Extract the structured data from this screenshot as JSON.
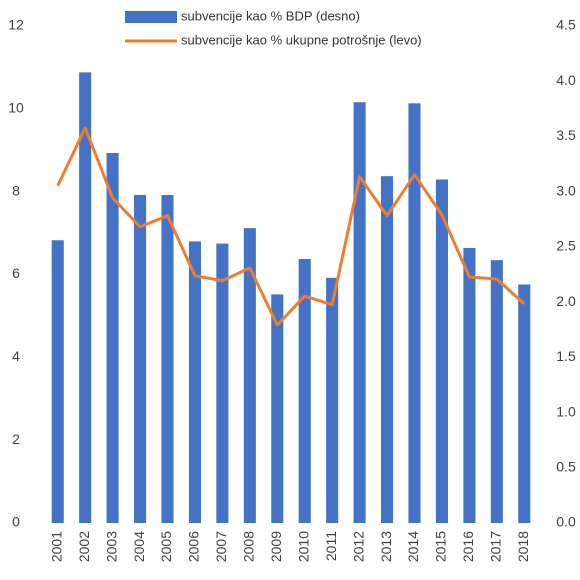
{
  "chart_data": {
    "type": "bar_line",
    "categories": [
      "2001",
      "2002",
      "2003",
      "2004",
      "2005",
      "2006",
      "2007",
      "2008",
      "2009",
      "2010",
      "2011",
      "2012",
      "2013",
      "2014",
      "2015",
      "2016",
      "2017",
      "2018"
    ],
    "series": [
      {
        "name": "subvencije kao % BDP (desno)",
        "type": "bar",
        "axis": "y2",
        "color": "#4472c4",
        "values": [
          2.56,
          4.08,
          3.35,
          2.97,
          2.97,
          2.55,
          2.53,
          2.67,
          2.07,
          2.39,
          2.22,
          3.81,
          3.14,
          3.8,
          3.11,
          2.49,
          2.38,
          2.16
        ]
      },
      {
        "name": "subvencije kao % ukupne potrošnje (levo)",
        "type": "line",
        "axis": "y",
        "color": "#ed7d31",
        "values": [
          8.14,
          9.54,
          7.85,
          7.15,
          7.42,
          5.97,
          5.85,
          6.16,
          4.78,
          5.48,
          5.27,
          8.36,
          7.42,
          8.41,
          7.44,
          5.94,
          5.89,
          5.29
        ]
      }
    ],
    "ylim": [
      0,
      12
    ],
    "yticks": [
      0,
      2,
      4,
      6,
      8,
      10,
      12
    ],
    "y2lim": [
      0,
      4.5
    ],
    "y2ticks": [
      {
        "value": 0,
        "label": "0.0"
      },
      0.5,
      {
        "value": 1,
        "label": "1.0"
      },
      1.5,
      {
        "value": 2,
        "label": "2.0"
      },
      2.5,
      {
        "value": 3,
        "label": "3.0"
      },
      3.5,
      {
        "value": 4,
        "label": "4.0"
      },
      4.5
    ],
    "legend": "top"
  }
}
